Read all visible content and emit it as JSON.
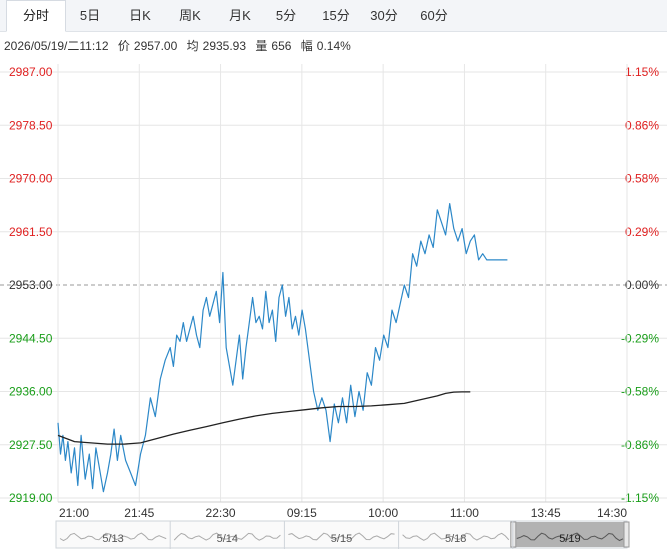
{
  "tabs": [
    {
      "label": "分时",
      "active": true
    },
    {
      "label": "5日",
      "active": false
    },
    {
      "label": "日K",
      "active": false
    },
    {
      "label": "周K",
      "active": false
    },
    {
      "label": "月K",
      "active": false
    },
    {
      "label": "5分",
      "active": false
    },
    {
      "label": "15分",
      "active": false
    },
    {
      "label": "30分",
      "active": false
    },
    {
      "label": "60分",
      "active": false
    }
  ],
  "info": {
    "datetime": "2026/05/19/二11:12",
    "price_label": "价",
    "price": "2957.00",
    "avg_label": "均",
    "avg": "2935.93",
    "volume_label": "量",
    "volume": "656",
    "change_label": "幅",
    "change": "0.14%"
  },
  "colors": {
    "price_line": "#2c88c8",
    "avg_line": "#222222",
    "up": "#e02020",
    "down": "#1a9e1a",
    "flat": "#333333",
    "grid": "#e6e6e6",
    "baseline": "#999999"
  },
  "chart_data": {
    "type": "line",
    "title": "",
    "xlabel": "",
    "ylabel": "",
    "ylim": [
      2919.0,
      2987.0
    ],
    "baseline": 2953.0,
    "y_ticks": [
      "2987.00",
      "2978.50",
      "2970.00",
      "2961.50",
      "2953.00",
      "2944.50",
      "2936.00",
      "2927.50",
      "2919.00"
    ],
    "pct_ticks": [
      "1.15%",
      "0.86%",
      "0.58%",
      "0.29%",
      "0.00%",
      "-0.29%",
      "-0.58%",
      "-0.86%",
      "-1.15%"
    ],
    "x_ticks": [
      "21:00",
      "21:45",
      "22:30",
      "09:15",
      "10:00",
      "11:00",
      "13:45",
      "14:30"
    ],
    "grid": true,
    "series": [
      {
        "name": "价",
        "x_index": [
          0,
          3,
          6,
          9,
          12,
          16,
          20,
          24,
          28,
          33,
          38,
          42,
          46,
          50,
          55,
          60,
          64,
          68,
          72,
          76,
          82,
          88,
          94,
          100,
          106,
          112,
          118,
          124,
          130,
          136,
          140,
          144,
          148,
          152,
          156,
          160,
          164,
          168,
          172,
          176,
          180,
          184,
          188,
          192,
          196,
          200,
          204,
          208,
          212,
          216,
          220,
          224,
          228,
          232,
          236,
          240,
          244,
          248,
          252,
          256,
          260,
          264,
          268,
          272,
          276,
          280,
          284,
          288,
          292,
          296,
          300,
          305,
          310,
          315,
          320,
          325,
          330,
          335,
          340,
          345,
          350,
          355,
          360,
          365,
          370,
          375,
          380,
          385,
          390,
          395,
          400,
          405,
          410,
          415,
          420,
          425,
          430,
          435,
          440,
          445,
          450,
          455,
          460,
          465,
          470,
          475,
          480,
          485,
          490,
          495,
          500,
          505,
          510,
          515,
          520,
          525,
          530,
          535,
          540,
          545
        ],
        "values": [
          2931.0,
          2926.0,
          2929.0,
          2925.0,
          2928.0,
          2923.0,
          2927.0,
          2921.0,
          2929.0,
          2922.0,
          2926.0,
          2920.5,
          2927.0,
          2924.0,
          2920.0,
          2923.0,
          2926.0,
          2930.0,
          2925.0,
          2929.0,
          2925.0,
          2923.0,
          2921.0,
          2926.0,
          2929.0,
          2935.0,
          2932.0,
          2938.0,
          2941.0,
          2943.0,
          2940.0,
          2945.0,
          2944.0,
          2947.0,
          2944.0,
          2946.0,
          2948.0,
          2945.0,
          2943.0,
          2949.0,
          2951.0,
          2948.0,
          2950.0,
          2952.0,
          2947.0,
          2955.0,
          2943.0,
          2940.0,
          2937.0,
          2941.0,
          2945.0,
          2938.0,
          2943.0,
          2947.0,
          2951.0,
          2947.0,
          2948.0,
          2946.0,
          2952.0,
          2947.0,
          2949.0,
          2944.0,
          2951.0,
          2953.0,
          2948.0,
          2951.0,
          2946.0,
          2948.0,
          2945.0,
          2949.0,
          2946.0,
          2941.0,
          2936.0,
          2933.0,
          2935.0,
          2933.0,
          2928.0,
          2934.0,
          2931.0,
          2935.0,
          2931.0,
          2937.0,
          2932.0,
          2936.0,
          2933.0,
          2939.0,
          2937.0,
          2943.0,
          2941.0,
          2945.0,
          2943.0,
          2949.0,
          2947.0,
          2950.0,
          2953.0,
          2951.0,
          2958.0,
          2956.0,
          2960.0,
          2958.0,
          2961.0,
          2959.0,
          2965.0,
          2963.0,
          2961.0,
          2966.0,
          2962.0,
          2960.0,
          2962.0,
          2958.0,
          2960.0,
          2961.0,
          2957.0,
          2958.0,
          2957.0,
          2957.0,
          2957.0,
          2957.0,
          2957.0,
          2957.0
        ]
      },
      {
        "name": "均",
        "x_index": [
          0,
          20,
          40,
          60,
          80,
          100,
          120,
          140,
          160,
          180,
          200,
          220,
          240,
          260,
          280,
          300,
          320,
          340,
          360,
          380,
          400,
          420,
          440,
          460,
          470,
          480,
          490,
          500
        ],
        "values": [
          2929.0,
          2928.0,
          2927.8,
          2927.6,
          2927.6,
          2927.8,
          2928.5,
          2929.2,
          2929.8,
          2930.4,
          2931.0,
          2931.6,
          2932.1,
          2932.5,
          2932.8,
          2933.1,
          2933.4,
          2933.6,
          2933.6,
          2933.7,
          2933.9,
          2934.1,
          2934.7,
          2935.3,
          2935.7,
          2935.9,
          2935.93,
          2935.93
        ]
      }
    ],
    "x_total": 690,
    "navigator": {
      "dates": [
        "5/13",
        "5/14",
        "5/15",
        "5/18",
        "5/19"
      ],
      "selected": "5/19"
    }
  }
}
